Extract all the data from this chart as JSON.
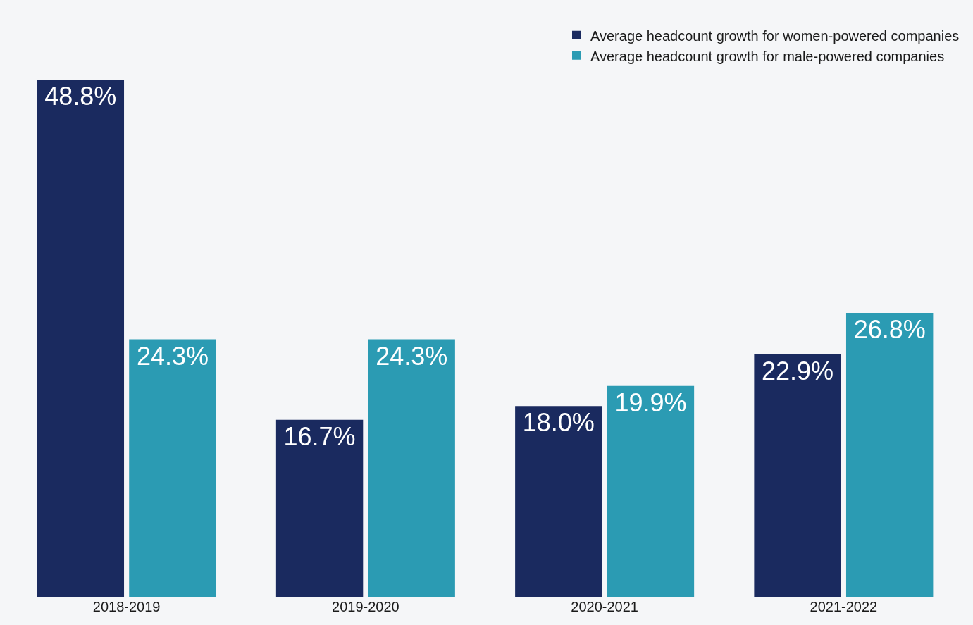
{
  "chart_data": {
    "type": "bar",
    "categories": [
      "2018-2019",
      "2019-2020",
      "2020-2021",
      "2021-2022"
    ],
    "series": [
      {
        "name": "Average headcount growth for women-powered companies",
        "color": "#1a2a5f",
        "values": [
          48.8,
          16.7,
          18.0,
          22.9
        ],
        "value_labels": [
          "48.8%",
          "16.7%",
          "18.0%",
          "22.9%"
        ]
      },
      {
        "name": "Average headcount growth for male-powered companies",
        "color": "#2b9bb3",
        "values": [
          24.3,
          24.3,
          19.9,
          26.8
        ],
        "value_labels": [
          "24.3%",
          "24.3%",
          "19.9%",
          "26.8%"
        ]
      }
    ],
    "legend": "top right",
    "grid": false
  }
}
